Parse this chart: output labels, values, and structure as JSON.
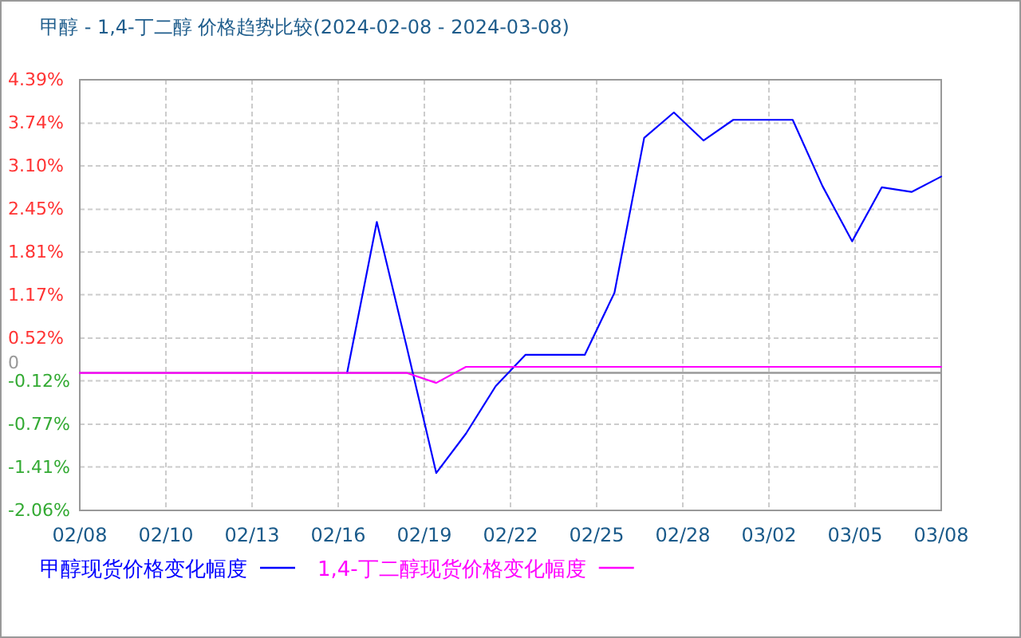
{
  "chart_data": {
    "type": "line",
    "title": "甲醇 - 1,4-丁二醇 价格趋势比较(2024-02-08 - 2024-03-08)",
    "x": [
      "2024-02-08",
      "2024-02-09",
      "2024-02-10",
      "2024-02-11",
      "2024-02-12",
      "2024-02-13",
      "2024-02-14",
      "2024-02-15",
      "2024-02-16",
      "2024-02-17",
      "2024-02-18",
      "2024-02-19",
      "2024-02-20",
      "2024-02-21",
      "2024-02-22",
      "2024-02-23",
      "2024-02-24",
      "2024-02-25",
      "2024-02-26",
      "2024-02-27",
      "2024-02-28",
      "2024-02-29",
      "2024-03-01",
      "2024-03-02",
      "2024-03-03",
      "2024-03-04",
      "2024-03-05",
      "2024-03-06",
      "2024-03-07",
      "2024-03-08"
    ],
    "xlim": [
      "2024-02-08",
      "2024-03-08"
    ],
    "xticks": [
      {
        "value": "2024-02-08",
        "label": "02/08"
      },
      {
        "value": "2024-02-10T21:36",
        "label": "02/10"
      },
      {
        "value": "2024-02-13T19:12",
        "label": "02/13"
      },
      {
        "value": "2024-02-16T16:48",
        "label": "02/16"
      },
      {
        "value": "2024-02-19T14:24",
        "label": "02/19"
      },
      {
        "value": "2024-02-22T12:00",
        "label": "02/22"
      },
      {
        "value": "2024-02-25T09:36",
        "label": "02/25"
      },
      {
        "value": "2024-02-28T07:12",
        "label": "02/28"
      },
      {
        "value": "2024-03-02T04:48",
        "label": "03/02"
      },
      {
        "value": "2024-03-05T02:24",
        "label": "03/05"
      },
      {
        "value": "2024-03-08",
        "label": "03/08"
      }
    ],
    "ylim": [
      -2.06,
      4.39
    ],
    "yticks": [
      {
        "value": -2.06,
        "label": "-2.06%"
      },
      {
        "value": -1.41,
        "label": "-1.41%"
      },
      {
        "value": -0.77,
        "label": "-0.77%"
      },
      {
        "value": -0.12,
        "label": "-0.12%"
      },
      {
        "value": 0.52,
        "label": "0.52%"
      },
      {
        "value": 1.17,
        "label": "1.17%"
      },
      {
        "value": 1.81,
        "label": "1.81%"
      },
      {
        "value": 2.45,
        "label": "2.45%"
      },
      {
        "value": 3.1,
        "label": "3.10%"
      },
      {
        "value": 3.74,
        "label": "3.74%"
      },
      {
        "value": 4.39,
        "label": "4.39%"
      }
    ],
    "grid": true,
    "legend": "bottom",
    "ref_lines": [
      {
        "axis": "y",
        "value": 0,
        "label": "0",
        "color": "#999999"
      }
    ],
    "series": [
      {
        "name": "甲醇现货价格变化幅度",
        "color": "#0000ff",
        "values": [
          null,
          null,
          null,
          null,
          null,
          null,
          null,
          null,
          null,
          0,
          2.26,
          0.4,
          -1.5,
          -0.91,
          -0.2,
          0.27,
          0.27,
          0.27,
          1.2,
          3.52,
          3.9,
          3.48,
          3.79,
          3.79,
          3.79,
          2.8,
          1.97,
          2.78,
          2.71,
          2.94
        ]
      },
      {
        "name": "1,4-丁二醇现货价格变化幅度",
        "color": "#ff00ff",
        "values": [
          0,
          0,
          0,
          0,
          0,
          0,
          0,
          0,
          0,
          0,
          0,
          0,
          -0.15,
          0.09,
          0.09,
          0.09,
          0.09,
          0.09,
          0.09,
          0.09,
          0.09,
          0.09,
          0.09,
          0.09,
          0.09,
          0.09,
          0.09,
          0.09,
          0.09,
          0.09
        ]
      }
    ]
  }
}
